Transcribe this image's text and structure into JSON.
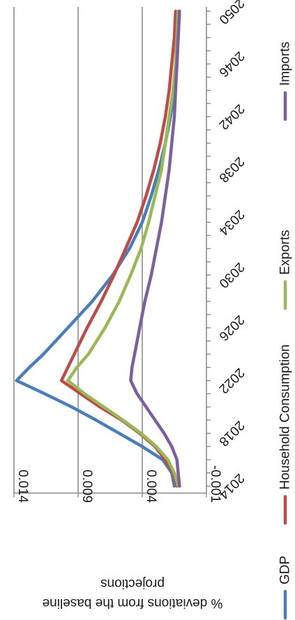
{
  "chart_data": {
    "type": "line",
    "title": "",
    "ylabel": "% deviations from the baseline projections",
    "xlabel": "",
    "ylim": [
      -0.001,
      0.014
    ],
    "xlim": [
      2014,
      2050
    ],
    "y_ticks": [
      "-0.001",
      "0.004",
      "0.009",
      "0.014"
    ],
    "x_ticks": [
      "2014",
      "2018",
      "2022",
      "2026",
      "2030",
      "2034",
      "2038",
      "2042",
      "2046",
      "2050"
    ],
    "grid": true,
    "legend_position": "bottom",
    "orientation": "rotated-90-clockwise",
    "series": [
      {
        "name": "GDP",
        "color": "#4a7ebb",
        "x": [
          2014,
          2015,
          2016,
          2017,
          2018,
          2019,
          2020,
          2021,
          2022,
          2023,
          2024,
          2026,
          2028,
          2030,
          2032,
          2034,
          2036,
          2038,
          2040,
          2042,
          2044,
          2046,
          2048,
          2050
        ],
        "values": [
          0.0015,
          0.0017,
          0.0024,
          0.004,
          0.0058,
          0.0076,
          0.0095,
          0.0116,
          0.0138,
          0.0128,
          0.0117,
          0.0098,
          0.0079,
          0.0063,
          0.005,
          0.004,
          0.0033,
          0.0027,
          0.0022,
          0.0018,
          0.0015,
          0.0013,
          0.0012,
          0.0011
        ]
      },
      {
        "name": "Household Consumption",
        "color": "#be4b48",
        "x": [
          2014,
          2015,
          2016,
          2017,
          2018,
          2019,
          2020,
          2021,
          2022,
          2023,
          2024,
          2026,
          2028,
          2030,
          2032,
          2034,
          2036,
          2038,
          2040,
          2042,
          2044,
          2046,
          2048,
          2050
        ],
        "values": [
          0.0013,
          0.0016,
          0.0022,
          0.003,
          0.0042,
          0.0056,
          0.0073,
          0.0088,
          0.0103,
          0.0098,
          0.0093,
          0.0083,
          0.0072,
          0.0062,
          0.0053,
          0.0044,
          0.0037,
          0.0031,
          0.0026,
          0.0022,
          0.0019,
          0.0017,
          0.0015,
          0.0014
        ]
      },
      {
        "name": "Exports",
        "color": "#98b954",
        "x": [
          2014,
          2015,
          2016,
          2017,
          2018,
          2019,
          2020,
          2021,
          2022,
          2023,
          2024,
          2026,
          2028,
          2030,
          2032,
          2034,
          2036,
          2038,
          2040,
          2042,
          2044,
          2046,
          2048,
          2050
        ],
        "values": [
          0.0012,
          0.0015,
          0.002,
          0.0029,
          0.0041,
          0.0055,
          0.007,
          0.0085,
          0.0098,
          0.0091,
          0.0082,
          0.0069,
          0.0058,
          0.0049,
          0.0041,
          0.0035,
          0.003,
          0.0025,
          0.0022,
          0.0019,
          0.0016,
          0.0014,
          0.0013,
          0.0012
        ]
      },
      {
        "name": "Imports",
        "color": "#7d5fa0",
        "x": [
          2014,
          2015,
          2016,
          2017,
          2018,
          2019,
          2020,
          2021,
          2022,
          2023,
          2024,
          2026,
          2028,
          2030,
          2032,
          2034,
          2036,
          2038,
          2040,
          2042,
          2044,
          2046,
          2048,
          2050
        ],
        "values": [
          0.0011,
          0.0012,
          0.0013,
          0.0017,
          0.0023,
          0.003,
          0.0037,
          0.0044,
          0.0049,
          0.0048,
          0.0046,
          0.0042,
          0.0038,
          0.0033,
          0.0029,
          0.0025,
          0.0022,
          0.0019,
          0.0017,
          0.0015,
          0.0014,
          0.0013,
          0.0012,
          0.0011
        ]
      }
    ]
  }
}
